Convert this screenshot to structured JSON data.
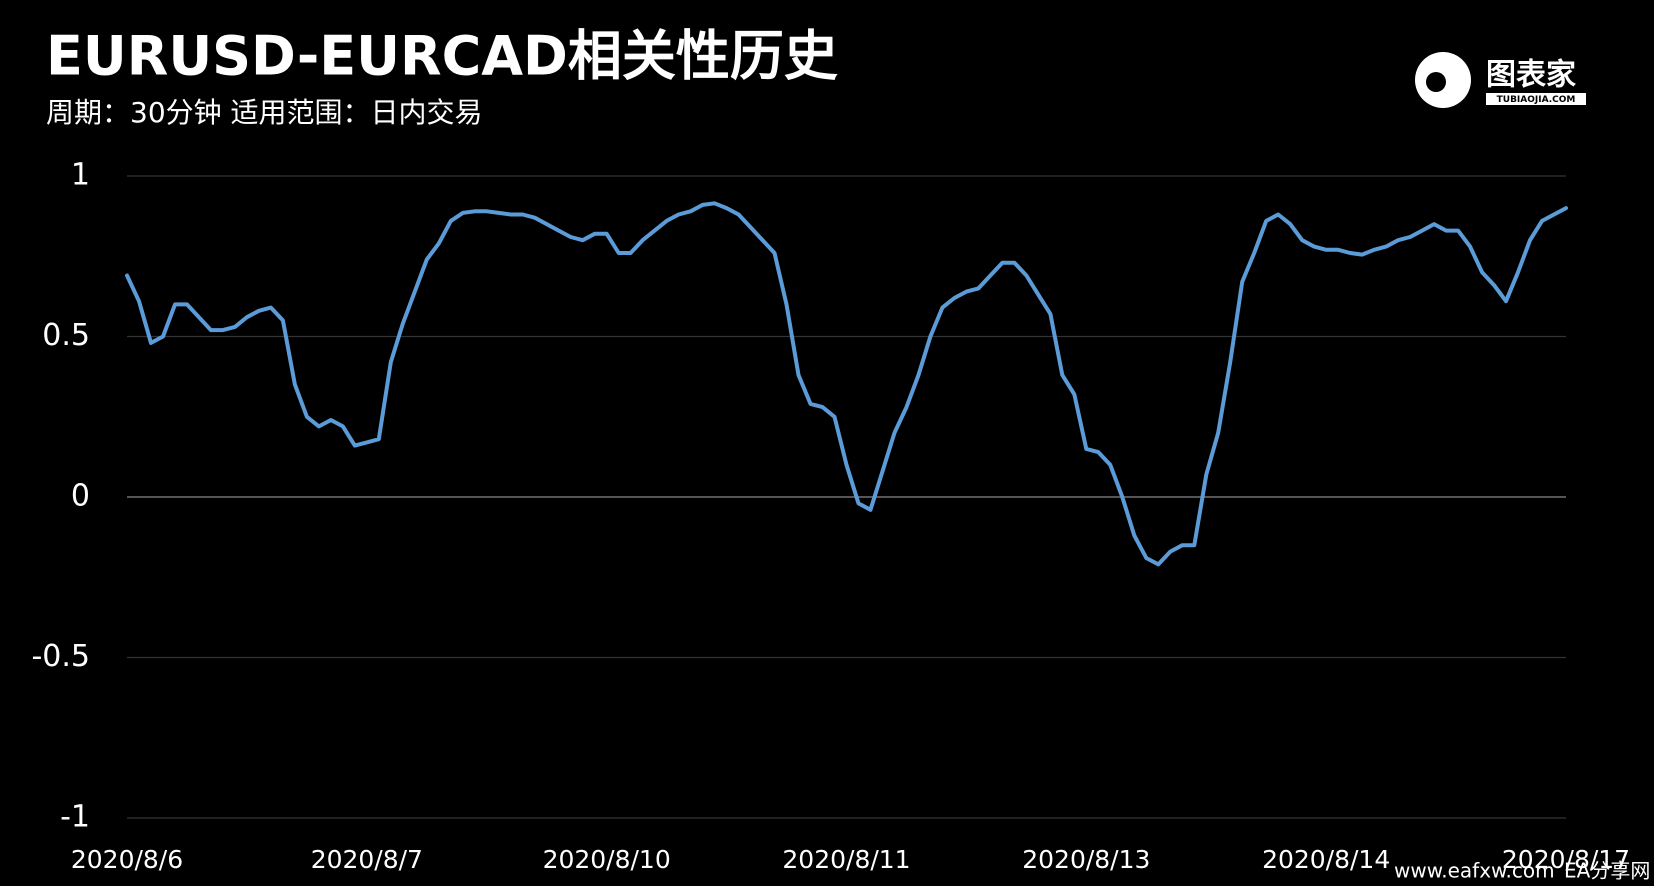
{
  "chart_data": {
    "type": "line",
    "title": "EURUSD-EURCAD相关性历史",
    "subtitle": "周期：30分钟  适用范围：日内交易",
    "categories": [
      "2020/8/6",
      null,
      null,
      null,
      null,
      null,
      null,
      null,
      null,
      null,
      null,
      null,
      null,
      null,
      null,
      null,
      null,
      null,
      null,
      null,
      "2020/8/7",
      null,
      null,
      null,
      null,
      null,
      null,
      null,
      null,
      null,
      null,
      null,
      null,
      null,
      null,
      null,
      null,
      null,
      null,
      null,
      "2020/8/10",
      null,
      null,
      null,
      null,
      null,
      null,
      null,
      null,
      null,
      null,
      null,
      null,
      null,
      null,
      null,
      null,
      null,
      null,
      null,
      "2020/8/11",
      null,
      null,
      null,
      null,
      null,
      null,
      null,
      null,
      null,
      null,
      null,
      null,
      null,
      null,
      null,
      null,
      null,
      null,
      null,
      "2020/8/13",
      null,
      null,
      null,
      null,
      null,
      null,
      null,
      null,
      null,
      null,
      null,
      null,
      null,
      null,
      null,
      null,
      null,
      null,
      null,
      "2020/8/14",
      null,
      null,
      null,
      null,
      null,
      null,
      null,
      null,
      null,
      null,
      null,
      null,
      null,
      null,
      null,
      null,
      null,
      null,
      null,
      "2020/8/17"
    ],
    "values": [
      0.69,
      0.61,
      0.48,
      0.5,
      0.6,
      0.6,
      0.56,
      0.52,
      0.52,
      0.53,
      0.56,
      0.58,
      0.59,
      0.55,
      0.35,
      0.25,
      0.22,
      0.24,
      0.22,
      0.16,
      0.17,
      0.18,
      0.42,
      0.54,
      0.64,
      0.74,
      0.79,
      0.86,
      0.885,
      0.89,
      0.89,
      0.885,
      0.88,
      0.88,
      0.87,
      0.85,
      0.83,
      0.81,
      0.8,
      0.82,
      0.82,
      0.76,
      0.76,
      0.8,
      0.83,
      0.86,
      0.88,
      0.89,
      0.91,
      0.915,
      0.9,
      0.88,
      0.84,
      0.8,
      0.76,
      0.6,
      0.38,
      0.29,
      0.28,
      0.25,
      0.1,
      -0.02,
      -0.04,
      0.08,
      0.2,
      0.28,
      0.38,
      0.5,
      0.59,
      0.62,
      0.64,
      0.65,
      0.69,
      0.73,
      0.73,
      0.69,
      0.63,
      0.57,
      0.38,
      0.32,
      0.15,
      0.14,
      0.1,
      0.0,
      -0.12,
      -0.19,
      -0.21,
      -0.17,
      -0.15,
      -0.15,
      0.07,
      0.2,
      0.42,
      0.67,
      0.76,
      0.86,
      0.88,
      0.85,
      0.8,
      0.78,
      0.77,
      0.77,
      0.76,
      0.755,
      0.77,
      0.78,
      0.8,
      0.81,
      0.83,
      0.85,
      0.83,
      0.83,
      0.78,
      0.7,
      0.66,
      0.61,
      0.7,
      0.8,
      0.86,
      0.88,
      0.9
    ],
    "color": "#5b9bd8",
    "ylim": [
      -1,
      1
    ],
    "yticks": [
      -1,
      -0.5,
      0,
      0.5,
      1
    ],
    "grid": true
  },
  "logo": {
    "name": "图表家",
    "site": "TUBIAOJIA.COM"
  },
  "watermark": {
    "site": "www.eafxw.com",
    "name": "EA分享网"
  }
}
